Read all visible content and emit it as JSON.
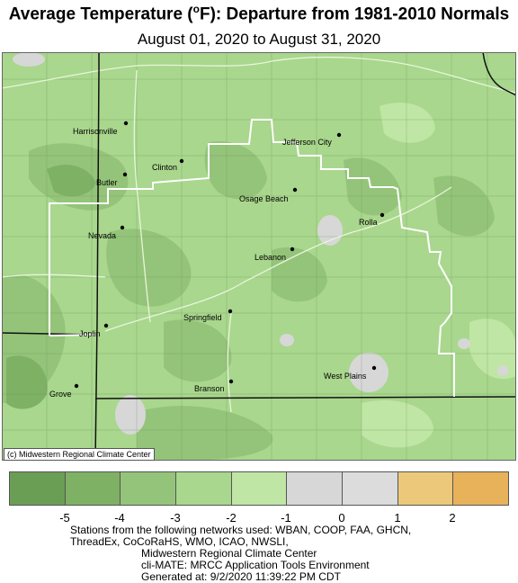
{
  "title": {
    "main": "Average Temperature (",
    "degree": "o",
    "rest": "F): Departure from 1981-2010 Normals"
  },
  "subtitle": "August 01, 2020 to August 31, 2020",
  "map": {
    "credit": "(c) Midwestern Regional Climate Center",
    "cities": [
      {
        "name": "Harrisonville"
      },
      {
        "name": "Butler"
      },
      {
        "name": "Clinton"
      },
      {
        "name": "Nevada"
      },
      {
        "name": "Jefferson City"
      },
      {
        "name": "Osage Beach"
      },
      {
        "name": "Rolla"
      },
      {
        "name": "Lebanon"
      },
      {
        "name": "Springfield"
      },
      {
        "name": "Joplin"
      },
      {
        "name": "Grove"
      },
      {
        "name": "Branson"
      },
      {
        "name": "West Plains"
      }
    ]
  },
  "legend": {
    "colors": [
      "#6b9e55",
      "#7fb165",
      "#94c479",
      "#a9d78d",
      "#bfe6a4",
      "#d7d7d7",
      "#dcdcdc",
      "#ebc87a",
      "#e8b25a"
    ],
    "ticks": [
      "-5",
      "-4",
      "-3",
      "-2",
      "-1",
      "0",
      "1",
      "2"
    ]
  },
  "footer": {
    "line1": "Stations from the following networks used: WBAN, COOP, FAA, GHCN,",
    "line2": "ThreadEx, CoCoRaHS, WMO, ICAO, NWSLI,",
    "line3": "Midwestern Regional Climate Center",
    "line4": "cli-MATE: MRCC Application Tools Environment",
    "line5": "Generated at: 9/2/2020 11:39:22 PM CDT"
  }
}
